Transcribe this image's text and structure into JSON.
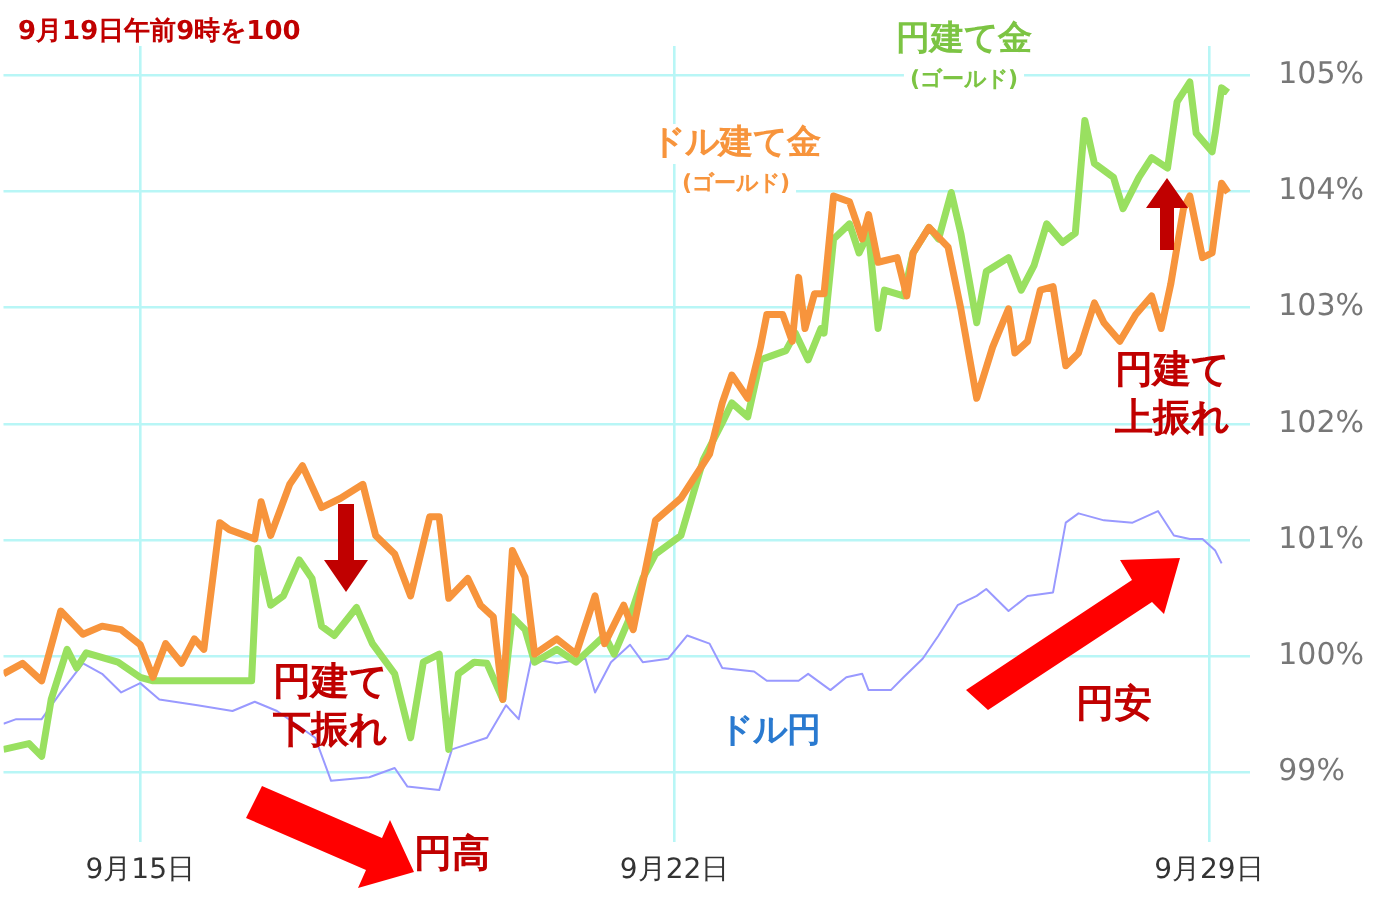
{
  "chart_data": {
    "type": "line",
    "title": "9月19日午前9時を100",
    "xlim": [
      "--09-13T05:00",
      "--09-29T13:00"
    ],
    "xticks": [
      {
        "value": "--09-15",
        "label": "9月15日"
      },
      {
        "value": "--09-22",
        "label": "9月22日"
      },
      {
        "value": "--09-29",
        "label": "9月29日"
      }
    ],
    "ylim": [
      98.4,
      105.25
    ],
    "yticks": [
      {
        "value": 99,
        "label": "99%"
      },
      {
        "value": 100,
        "label": "100%"
      },
      {
        "value": 101,
        "label": "101%"
      },
      {
        "value": 102,
        "label": "102%"
      },
      {
        "value": 103,
        "label": "103%"
      },
      {
        "value": 104,
        "label": "104%"
      },
      {
        "value": 105,
        "label": "105%"
      }
    ],
    "grid": true,
    "legend": false,
    "marker": "none",
    "line_style": "solid",
    "series": [
      {
        "name": "ドル建て金\n(ゴールド)",
        "color": "#f7943c",
        "x": [
          "--09-13T05:00",
          "--09-13T11:00",
          "--09-13T17:00",
          "--09-13T23:00",
          "--09-14T06:00",
          "--09-14T12:00",
          "--09-14T18:00",
          "--09-15T00:00",
          "--09-15T04:00",
          "--09-15T08:00",
          "--09-15T13:00",
          "--09-15T17:00",
          "--09-15T20:00",
          "--09-16T01:00",
          "--09-16T04:00",
          "--09-16T12:00",
          "--09-16T14:00",
          "--09-16T17:00",
          "--09-16T23:00",
          "--09-17T03:00",
          "--09-17T09:00",
          "--09-17T15:00",
          "--09-17T22:00",
          "--09-18T02:00",
          "--09-18T08:00",
          "--09-18T13:00",
          "--09-18T19:00",
          "--09-18T22:00",
          "--09-19T01:00",
          "--09-19T07:00",
          "--09-19T11:00",
          "--09-19T15:00",
          "--09-19T18:00",
          "--09-19T21:00",
          "--09-20T01:00",
          "--09-20T04:00",
          "--09-20T11:00",
          "--09-20T17:00",
          "--09-20T23:00",
          "--09-21T02:00",
          "--09-21T08:00",
          "--09-21T11:00",
          "--09-21T18:00",
          "--09-22T02:00",
          "--09-22T11:00",
          "--09-22T15:00",
          "--09-22T18:00",
          "--09-22T23:00",
          "--09-23T03:00",
          "--09-23T05:00",
          "--09-23T10:00",
          "--09-23T13:00",
          "--09-23T15:00",
          "--09-23T17:00",
          "--09-23T20:00",
          "--09-23T23:00",
          "--09-24T02:00",
          "--09-24T07:00",
          "--09-24T11:00",
          "--09-24T13:00",
          "--09-24T16:00",
          "--09-24T22:00",
          "--09-25T01:00",
          "--09-25T03:00",
          "--09-25T08:00",
          "--09-25T14:00",
          "--09-25T18:00",
          "--09-25T23:00",
          "--09-26T04:00",
          "--09-26T09:00",
          "--09-26T11:00",
          "--09-26T15:00",
          "--09-26T19:00",
          "--09-26T23:00",
          "--09-27T03:00",
          "--09-27T07:00",
          "--09-27T12:00",
          "--09-27T15:00",
          "--09-27T20:00",
          "--09-28T01:00",
          "--09-28T06:00",
          "--09-28T09:00",
          "--09-28T12:00",
          "--09-28T16:00",
          "--09-28T18:00",
          "--09-28T22:00",
          "--09-29T01:00",
          "--09-29T04:00",
          "--09-29T06:00"
        ],
        "values": [
          99.85,
          99.94,
          99.79,
          100.39,
          100.19,
          100.26,
          100.23,
          100.1,
          99.82,
          100.11,
          99.94,
          100.15,
          100.06,
          101.15,
          101.09,
          101.01,
          101.33,
          101.04,
          101.48,
          101.64,
          101.28,
          101.36,
          101.48,
          101.04,
          100.88,
          100.52,
          101.2,
          101.2,
          100.5,
          100.67,
          100.44,
          100.34,
          99.63,
          100.91,
          100.68,
          100.02,
          100.15,
          100.02,
          100.52,
          100.11,
          100.44,
          100.23,
          101.17,
          101.36,
          101.74,
          102.18,
          102.42,
          102.22,
          102.66,
          102.94,
          102.94,
          102.71,
          103.26,
          102.82,
          103.12,
          103.12,
          103.96,
          103.91,
          103.59,
          103.8,
          103.39,
          103.43,
          103.1,
          103.47,
          103.69,
          103.52,
          102.99,
          102.22,
          102.66,
          102.99,
          102.61,
          102.71,
          103.15,
          103.18,
          102.5,
          102.61,
          103.04,
          102.87,
          102.71,
          102.94,
          103.1,
          102.82,
          103.2,
          103.85,
          103.96,
          103.43,
          103.47,
          104.07,
          103.99
        ]
      },
      {
        "name": "円建て金\n(ゴールド)",
        "color": "#99e060",
        "x": [
          "--09-13T05:00",
          "--09-13T13:00",
          "--09-13T17:00",
          "--09-13T20:00",
          "--09-14T01:00",
          "--09-14T04:00",
          "--09-14T07:00",
          "--09-14T17:00",
          "--09-15T00:00",
          "--09-15T04:00",
          "--09-16T11:00",
          "--09-16T13:00",
          "--09-16T17:00",
          "--09-16T21:00",
          "--09-17T02:00",
          "--09-17T06:00",
          "--09-17T09:00",
          "--09-17T13:00",
          "--09-17T20:00",
          "--09-18T01:00",
          "--09-18T08:00",
          "--09-18T13:00",
          "--09-18T17:00",
          "--09-18T22:00",
          "--09-19T01:00",
          "--09-19T04:00",
          "--09-19T09:00",
          "--09-19T13:00",
          "--09-19T18:00",
          "--09-19T21:00",
          "--09-20T01:00",
          "--09-20T04:00",
          "--09-20T11:00",
          "--09-20T17:00",
          "--09-21T02:00",
          "--09-21T05:00",
          "--09-21T10:00",
          "--09-21T14:00",
          "--09-21T18:00",
          "--09-22T02:00",
          "--09-22T09:00",
          "--09-22T15:00",
          "--09-22T18:00",
          "--09-22T23:00",
          "--09-23T03:00",
          "--09-23T11:00",
          "--09-23T14:00",
          "--09-23T18:00",
          "--09-23T22:00",
          "--09-23T23:00",
          "--09-24T02:00",
          "--09-24T07:00",
          "--09-24T10:00",
          "--09-24T13:00",
          "--09-24T16:00",
          "--09-24T18:00",
          "--09-25T00:00",
          "--09-25T03:00",
          "--09-25T08:00",
          "--09-25T11:00",
          "--09-25T15:00",
          "--09-25T18:00",
          "--09-25T23:00",
          "--09-26T02:00",
          "--09-26T09:00",
          "--09-26T13:00",
          "--09-26T17:00",
          "--09-26T21:00",
          "--09-27T02:00",
          "--09-27T06:00",
          "--09-27T09:00",
          "--09-27T12:00",
          "--09-27T18:00",
          "--09-27T21:00",
          "--09-28T02:00",
          "--09-28T06:00",
          "--09-28T11:00",
          "--09-28T14:00",
          "--09-28T18:00",
          "--09-28T20:00",
          "--09-29T01:00",
          "--09-29T02:00",
          "--09-29T04:00",
          "--09-29T06:00"
        ],
        "values": [
          99.2,
          99.25,
          99.14,
          99.63,
          100.06,
          99.9,
          100.03,
          99.95,
          99.82,
          99.79,
          99.79,
          100.93,
          100.44,
          100.52,
          100.83,
          100.67,
          100.26,
          100.18,
          100.42,
          100.11,
          99.85,
          99.3,
          99.95,
          100.02,
          99.2,
          99.85,
          99.95,
          99.94,
          99.63,
          100.34,
          100.23,
          99.95,
          100.06,
          99.95,
          100.18,
          100.02,
          100.34,
          100.67,
          100.88,
          101.04,
          101.69,
          102.01,
          102.18,
          102.06,
          102.55,
          102.63,
          102.78,
          102.55,
          102.82,
          102.78,
          103.59,
          103.72,
          103.47,
          103.64,
          102.82,
          103.15,
          103.1,
          103.47,
          103.69,
          103.59,
          103.99,
          103.64,
          102.87,
          103.31,
          103.43,
          103.15,
          103.36,
          103.72,
          103.56,
          103.64,
          104.61,
          104.24,
          104.12,
          103.85,
          104.12,
          104.29,
          104.2,
          104.77,
          104.94,
          104.5,
          104.34,
          104.5,
          104.89,
          104.85
        ]
      },
      {
        "name": "ドル円",
        "color": "#9999ff",
        "x": [
          "--09-13T05:00",
          "--09-13T09:00",
          "--09-13T17:00",
          "--09-13T23:00",
          "--09-14T06:00",
          "--09-14T12:00",
          "--09-14T18:00",
          "--09-15T00:00",
          "--09-15T06:00",
          "--09-15T18:00",
          "--09-16T05:00",
          "--09-16T12:00",
          "--09-16T19:00",
          "--09-17T07:00",
          "--09-17T12:00",
          "--09-18T00:00",
          "--09-18T08:00",
          "--09-18T12:00",
          "--09-18T22:00",
          "--09-19T02:00",
          "--09-19T13:00",
          "--09-19T19:00",
          "--09-19T23:00",
          "--09-20T03:00",
          "--09-20T11:00",
          "--09-20T20:00",
          "--09-20T23:00",
          "--09-21T04:00",
          "--09-21T10:00",
          "--09-21T14:00",
          "--09-21T22:00",
          "--09-22T04:00",
          "--09-22T11:00",
          "--09-22T15:00",
          "--09-23T01:00",
          "--09-23T05:00",
          "--09-23T15:00",
          "--09-23T18:00",
          "--09-24T01:00",
          "--09-24T06:00",
          "--09-24T11:00",
          "--09-24T13:00",
          "--09-24T20:00",
          "--09-25T00:00",
          "--09-25T06:00",
          "--09-25T11:00",
          "--09-25T17:00",
          "--09-25T23:00",
          "--09-26T02:00",
          "--09-26T09:00",
          "--09-26T15:00",
          "--09-26T23:00",
          "--09-27T03:00",
          "--09-27T07:00",
          "--09-27T15:00",
          "--09-28T00:00",
          "--09-28T08:00",
          "--09-28T13:00",
          "--09-28T18:00",
          "--09-28T22:00",
          "--09-29T02:00",
          "--09-29T04:00"
        ],
        "values": [
          99.42,
          99.46,
          99.46,
          99.69,
          99.94,
          99.85,
          99.69,
          99.77,
          99.63,
          99.58,
          99.53,
          99.61,
          99.53,
          99.3,
          98.93,
          98.96,
          99.04,
          98.88,
          98.85,
          99.2,
          99.3,
          99.58,
          99.46,
          99.98,
          99.94,
          99.98,
          99.69,
          99.95,
          100.1,
          99.95,
          99.98,
          100.18,
          100.11,
          99.9,
          99.87,
          99.79,
          99.79,
          99.85,
          99.71,
          99.82,
          99.85,
          99.71,
          99.71,
          99.82,
          99.98,
          100.18,
          100.44,
          100.52,
          100.58,
          100.39,
          100.52,
          100.55,
          101.15,
          101.23,
          101.17,
          101.15,
          101.25,
          101.04,
          101.01,
          101.01,
          100.91,
          100.8
        ]
      }
    ],
    "annotations": [
      "円建て下振れ",
      "円高",
      "円安",
      "円建て上振れ"
    ]
  }
}
